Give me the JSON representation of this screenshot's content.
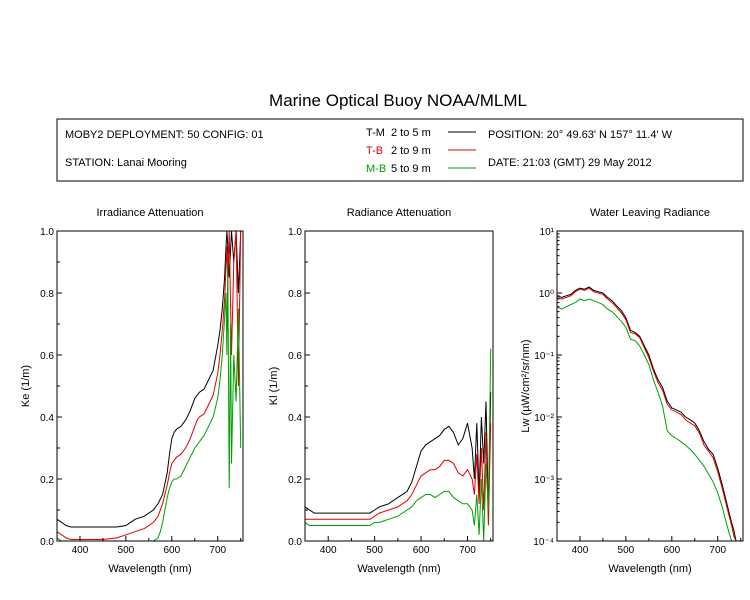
{
  "title": "Marine Optical Buoy NOAA/MLML",
  "info": {
    "deployment": "MOBY2 DEPLOYMENT: 50 CONFIG: 01",
    "station": "STATION: Lanai Mooring",
    "position": "POSITION: 20° 49.63' N   157° 11.4' W",
    "date": "DATE: 21:03 (GMT) 29 May 2012",
    "legend": [
      {
        "code": "T-M",
        "range": "2 to 5  m",
        "color": "#000000"
      },
      {
        "code": "T-B",
        "range": "2 to 9  m",
        "color": "#e00000"
      },
      {
        "code": "M-B",
        "range": "5 to 9  m",
        "color": "#00a000"
      }
    ]
  },
  "chart_data": [
    {
      "type": "line",
      "title": "Irradiance Attenuation",
      "xlabel": "Wavelength (nm)",
      "ylabel": "Ke  (1/m)",
      "xlim": [
        350,
        755
      ],
      "ylim": [
        0,
        1.0
      ],
      "xticks": [
        400,
        500,
        600,
        700
      ],
      "yticks": [
        0,
        0.2,
        0.4,
        0.6,
        0.8,
        1.0
      ],
      "ytick_labels": [
        "0.0",
        "0.2",
        "0.4",
        "0.6",
        "0.8",
        "1.0"
      ],
      "series": [
        {
          "name": "T-M",
          "color": "#000000",
          "x": [
            350,
            360,
            370,
            380,
            390,
            400,
            420,
            450,
            480,
            500,
            510,
            520,
            540,
            560,
            570,
            580,
            590,
            595,
            600,
            605,
            610,
            620,
            630,
            640,
            650,
            655,
            660,
            670,
            680,
            690,
            700,
            705,
            710,
            715,
            718,
            720,
            722,
            725,
            730,
            735,
            740,
            745,
            750
          ],
          "y": [
            0.07,
            0.06,
            0.05,
            0.045,
            0.045,
            0.045,
            0.045,
            0.045,
            0.045,
            0.05,
            0.06,
            0.07,
            0.08,
            0.1,
            0.12,
            0.15,
            0.22,
            0.28,
            0.33,
            0.35,
            0.36,
            0.37,
            0.39,
            0.42,
            0.46,
            0.47,
            0.48,
            0.49,
            0.52,
            0.55,
            0.63,
            0.68,
            0.75,
            0.85,
            0.95,
            1.0,
            0.95,
            0.85,
            1.0,
            0.9,
            1.0,
            0.8,
            1.0
          ]
        },
        {
          "name": "T-B",
          "color": "#e00000",
          "x": [
            350,
            360,
            370,
            380,
            400,
            450,
            480,
            500,
            510,
            520,
            540,
            560,
            570,
            580,
            590,
            595,
            600,
            605,
            610,
            620,
            630,
            640,
            650,
            655,
            660,
            670,
            680,
            690,
            700,
            705,
            710,
            715,
            718,
            720,
            722,
            725,
            730,
            735,
            740,
            745,
            750
          ],
          "y": [
            0.03,
            0.02,
            0.01,
            0.005,
            0.005,
            0.005,
            0.01,
            0.02,
            0.025,
            0.03,
            0.04,
            0.06,
            0.08,
            0.12,
            0.18,
            0.22,
            0.25,
            0.26,
            0.27,
            0.28,
            0.3,
            0.33,
            0.37,
            0.39,
            0.4,
            0.41,
            0.44,
            0.47,
            0.54,
            0.6,
            0.68,
            0.78,
            0.88,
            0.95,
            0.85,
            1.0,
            0.6,
            0.9,
            1.0,
            0.5,
            1.0
          ]
        },
        {
          "name": "M-B",
          "color": "#00a000",
          "x": [
            350,
            360,
            370,
            400,
            450,
            500,
            520,
            540,
            560,
            570,
            575,
            580,
            585,
            590,
            595,
            600,
            605,
            610,
            620,
            630,
            640,
            650,
            655,
            660,
            670,
            680,
            690,
            700,
            705,
            710,
            715,
            718,
            720,
            722,
            725,
            728,
            730,
            735,
            740,
            745,
            750
          ],
          "y": [
            0.01,
            0.0,
            0.0,
            0.0,
            0.0,
            0.0,
            0.0,
            0.0,
            0.0,
            0.01,
            0.03,
            0.06,
            0.1,
            0.14,
            0.17,
            0.19,
            0.2,
            0.2,
            0.21,
            0.24,
            0.27,
            0.3,
            0.31,
            0.32,
            0.34,
            0.37,
            0.4,
            0.46,
            0.52,
            0.6,
            0.72,
            0.8,
            0.6,
            0.9,
            0.17,
            0.7,
            0.25,
            0.6,
            0.45,
            0.75,
            0.3
          ]
        }
      ]
    },
    {
      "type": "line",
      "title": "Radiance Attenuation",
      "xlabel": "Wavelength (nm)",
      "ylabel": "Kl  (1/m)",
      "xlim": [
        350,
        755
      ],
      "ylim": [
        0,
        1.0
      ],
      "xticks": [
        400,
        500,
        600,
        700
      ],
      "yticks": [
        0,
        0.2,
        0.4,
        0.6,
        0.8,
        1.0
      ],
      "ytick_labels": [
        "0.0",
        "0.2",
        "0.4",
        "0.6",
        "0.8",
        "1.0"
      ],
      "series": [
        {
          "name": "T-M",
          "color": "#000000",
          "x": [
            350,
            360,
            370,
            380,
            400,
            430,
            460,
            490,
            500,
            510,
            530,
            550,
            570,
            580,
            590,
            600,
            610,
            620,
            630,
            640,
            650,
            660,
            670,
            680,
            690,
            700,
            710,
            715,
            720,
            725,
            730,
            735,
            740,
            745,
            750
          ],
          "y": [
            0.11,
            0.1,
            0.09,
            0.09,
            0.09,
            0.09,
            0.09,
            0.09,
            0.1,
            0.11,
            0.12,
            0.14,
            0.16,
            0.19,
            0.24,
            0.29,
            0.31,
            0.32,
            0.33,
            0.34,
            0.36,
            0.37,
            0.35,
            0.31,
            0.33,
            0.38,
            0.3,
            0.2,
            0.38,
            0.15,
            0.4,
            0.25,
            0.45,
            0.1,
            0.48
          ]
        },
        {
          "name": "T-B",
          "color": "#e00000",
          "x": [
            350,
            360,
            370,
            380,
            400,
            430,
            460,
            490,
            500,
            510,
            530,
            550,
            570,
            580,
            590,
            600,
            610,
            620,
            630,
            640,
            650,
            660,
            670,
            680,
            690,
            700,
            710,
            715,
            720,
            725,
            730,
            735,
            740,
            745,
            750
          ],
          "y": [
            0.07,
            0.07,
            0.07,
            0.07,
            0.07,
            0.07,
            0.07,
            0.07,
            0.08,
            0.09,
            0.1,
            0.11,
            0.13,
            0.15,
            0.18,
            0.21,
            0.22,
            0.23,
            0.23,
            0.24,
            0.26,
            0.26,
            0.25,
            0.22,
            0.21,
            0.23,
            0.2,
            0.15,
            0.28,
            0.12,
            0.3,
            0.1,
            0.35,
            0.05,
            0.38
          ]
        },
        {
          "name": "M-B",
          "color": "#00a000",
          "x": [
            350,
            360,
            370,
            380,
            400,
            430,
            460,
            490,
            500,
            510,
            530,
            550,
            570,
            580,
            590,
            600,
            610,
            620,
            630,
            640,
            650,
            660,
            670,
            680,
            690,
            700,
            710,
            715,
            720,
            725,
            730,
            735,
            740,
            745,
            750
          ],
          "y": [
            0.06,
            0.05,
            0.05,
            0.05,
            0.05,
            0.05,
            0.05,
            0.05,
            0.06,
            0.06,
            0.07,
            0.08,
            0.1,
            0.11,
            0.13,
            0.14,
            0.15,
            0.15,
            0.14,
            0.15,
            0.16,
            0.16,
            0.14,
            0.13,
            0.12,
            0.12,
            0.1,
            0.05,
            0.15,
            0.02,
            0.2,
            0.0,
            0.25,
            0.1,
            0.62
          ]
        }
      ]
    },
    {
      "type": "line",
      "title": "Water Leaving Radiance",
      "xlabel": "Wavelength (nm)",
      "ylabel": "Lw  (µW/cm²/sr/nm)",
      "yscale": "log",
      "xlim": [
        350,
        755
      ],
      "ylim": [
        0.0001,
        10
      ],
      "xticks": [
        400,
        500,
        600,
        700
      ],
      "ytick_labels": [
        "10⁻⁴",
        "10⁻³",
        "10⁻²",
        "10⁻¹",
        "10⁰",
        "10¹"
      ],
      "series": [
        {
          "name": "T-M",
          "color": "#000000",
          "x": [
            350,
            360,
            370,
            380,
            390,
            400,
            410,
            420,
            430,
            440,
            450,
            460,
            470,
            480,
            490,
            500,
            510,
            520,
            530,
            540,
            550,
            560,
            570,
            580,
            590,
            600,
            610,
            620,
            630,
            640,
            650,
            660,
            670,
            680,
            690,
            700,
            710,
            720,
            730,
            735,
            740,
            745,
            750
          ],
          "y": [
            0.9,
            0.85,
            0.9,
            0.95,
            1.1,
            1.2,
            1.15,
            1.25,
            1.1,
            1.05,
            1.0,
            0.85,
            0.75,
            0.62,
            0.52,
            0.4,
            0.25,
            0.23,
            0.2,
            0.14,
            0.1,
            0.06,
            0.04,
            0.03,
            0.018,
            0.014,
            0.013,
            0.012,
            0.01,
            0.009,
            0.008,
            0.006,
            0.004,
            0.003,
            0.0025,
            0.0015,
            0.0008,
            0.0004,
            0.0002,
            0.00015,
            0.0001,
            0.0001,
            0.0001
          ]
        },
        {
          "name": "T-B",
          "color": "#e00000",
          "x": [
            350,
            360,
            370,
            380,
            390,
            400,
            410,
            420,
            430,
            440,
            450,
            460,
            470,
            480,
            490,
            500,
            510,
            520,
            530,
            540,
            550,
            560,
            570,
            580,
            590,
            600,
            610,
            620,
            630,
            640,
            650,
            660,
            670,
            680,
            690,
            700,
            710,
            720,
            730,
            735,
            740,
            745,
            750
          ],
          "y": [
            0.85,
            0.8,
            0.85,
            0.9,
            1.05,
            1.15,
            1.1,
            1.2,
            1.05,
            1.0,
            0.95,
            0.8,
            0.7,
            0.58,
            0.48,
            0.37,
            0.23,
            0.22,
            0.19,
            0.13,
            0.09,
            0.055,
            0.036,
            0.027,
            0.016,
            0.013,
            0.012,
            0.011,
            0.009,
            0.008,
            0.0072,
            0.0055,
            0.0035,
            0.0028,
            0.0022,
            0.0013,
            0.0007,
            0.00035,
            0.00018,
            0.00012,
            0.0001,
            0.0001,
            0.0001
          ]
        },
        {
          "name": "M-B",
          "color": "#00a000",
          "x": [
            350,
            360,
            370,
            380,
            390,
            400,
            410,
            420,
            430,
            440,
            450,
            460,
            470,
            480,
            490,
            500,
            510,
            520,
            530,
            540,
            550,
            560,
            570,
            580,
            590,
            600,
            610,
            620,
            630,
            640,
            650,
            660,
            670,
            680,
            690,
            700,
            710,
            720,
            730,
            735,
            740,
            745,
            750
          ],
          "y": [
            0.6,
            0.55,
            0.6,
            0.65,
            0.7,
            0.8,
            0.75,
            0.8,
            0.75,
            0.7,
            0.65,
            0.55,
            0.5,
            0.42,
            0.35,
            0.28,
            0.18,
            0.17,
            0.14,
            0.1,
            0.07,
            0.04,
            0.025,
            0.015,
            0.006,
            0.005,
            0.0045,
            0.004,
            0.0035,
            0.003,
            0.0025,
            0.002,
            0.0016,
            0.0012,
            0.0009,
            0.0006,
            0.00035,
            0.00018,
            0.0001,
            0.0001,
            0.0001,
            0.0001,
            0.0001
          ]
        }
      ]
    }
  ]
}
